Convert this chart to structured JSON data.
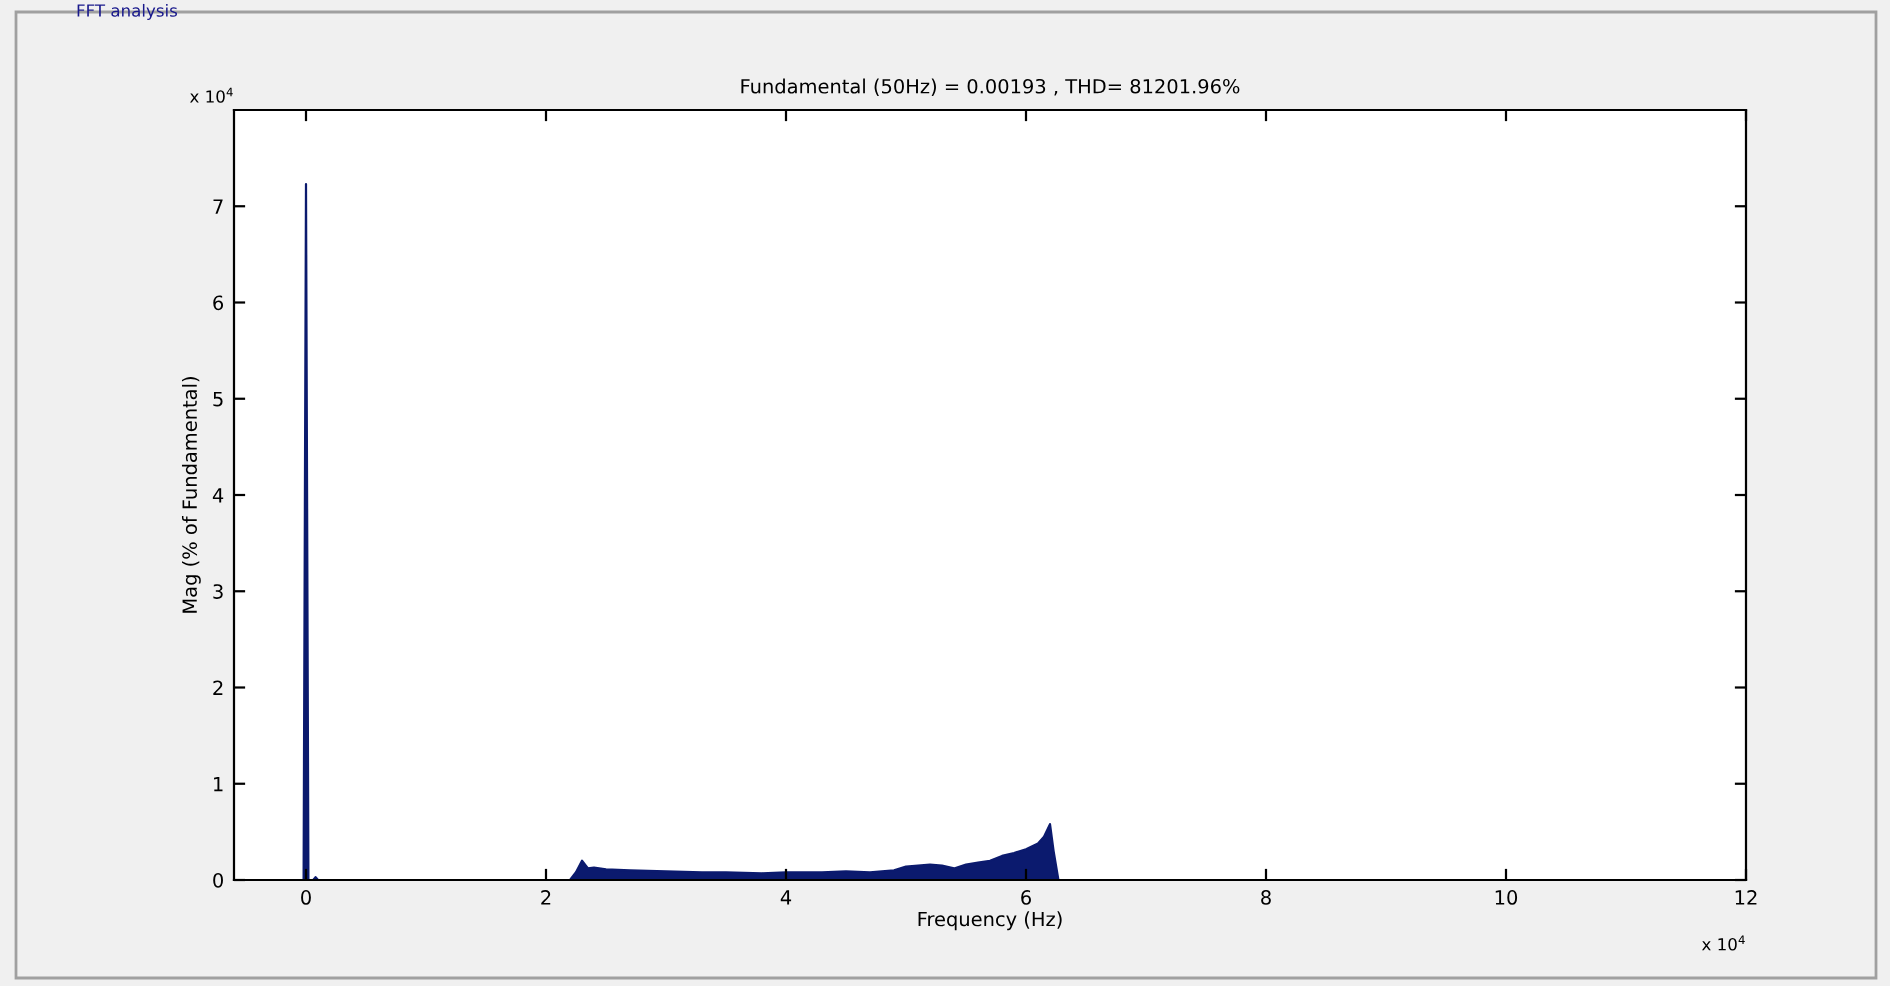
{
  "chart_data": {
    "type": "area",
    "title": "Fundamental (50Hz) = 0.00193 , THD= 81201.96%",
    "xlabel": "Frequency (Hz)",
    "ylabel": "Mag (% of Fundamental)",
    "annotations": [
      "FFT analysis",
      "x 10$^{4}$",
      "x 10$^{4}$"
    ],
    "series": [
      {
        "color": "#0b1a6e",
        "x": [
          -0.02,
          0,
          0.02,
          0.06,
          0.08,
          0.1,
          2.2,
          2.25,
          2.3,
          2.35,
          2.4,
          2.5,
          2.7,
          3.0,
          3.3,
          3.5,
          3.8,
          4.0,
          4.3,
          4.5,
          4.7,
          4.8,
          4.9,
          5.0,
          5.1,
          5.2,
          5.3,
          5.4,
          5.5,
          5.6,
          5.7,
          5.8,
          5.9,
          6.0,
          6.1,
          6.15,
          6.2,
          6.23,
          6.27,
          12
        ],
        "values": [
          0,
          7.23,
          0,
          0,
          0.03,
          0,
          0,
          0.08,
          0.2,
          0.12,
          0.13,
          0.11,
          0.1,
          0.09,
          0.08,
          0.08,
          0.07,
          0.08,
          0.08,
          0.09,
          0.08,
          0.09,
          0.1,
          0.14,
          0.15,
          0.16,
          0.15,
          0.12,
          0.16,
          0.18,
          0.2,
          0.25,
          0.28,
          0.32,
          0.38,
          0.45,
          0.58,
          0.3,
          0,
          0
        ]
      }
    ],
    "xlim": [
      -0.6,
      12
    ],
    "ylim": [
      0,
      8
    ],
    "xticks": [
      0,
      2,
      4,
      6,
      8,
      10,
      12
    ],
    "yticks": [
      0,
      1,
      2,
      3,
      4,
      5,
      6,
      7
    ],
    "grid": false,
    "legend": false
  }
}
